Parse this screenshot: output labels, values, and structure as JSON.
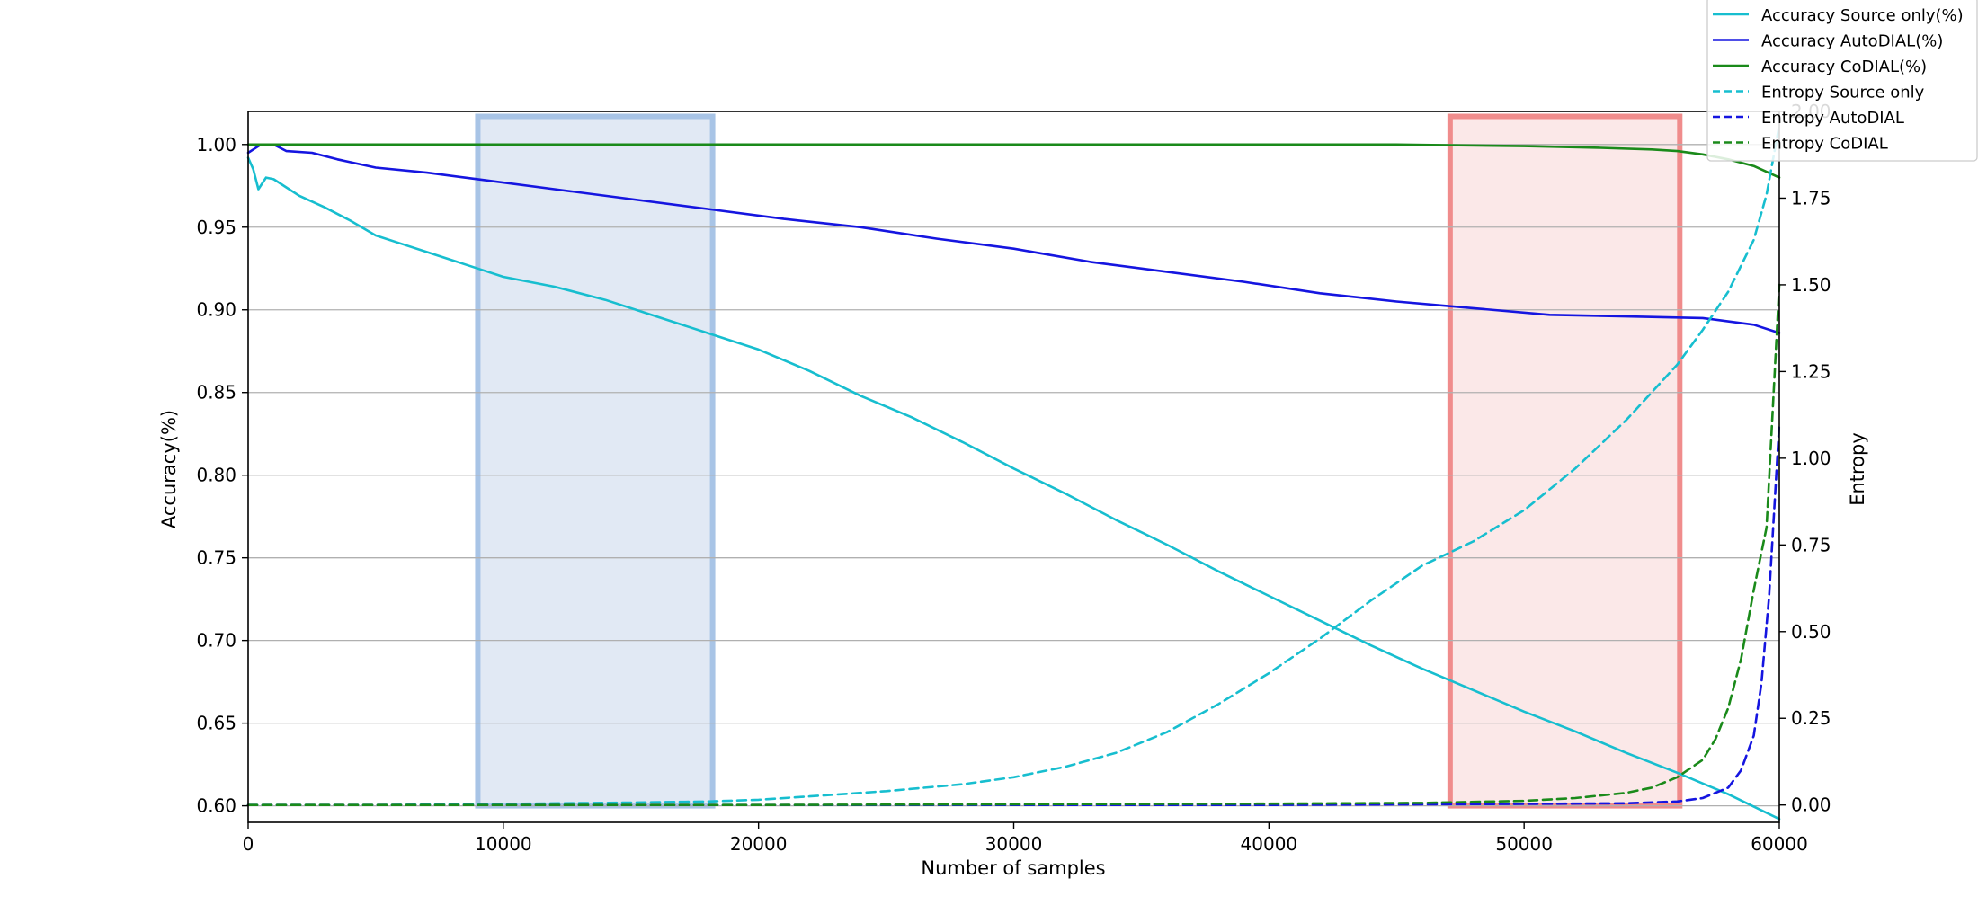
{
  "chart_data": {
    "type": "line",
    "xlabel": "Number of samples",
    "ylabel_left": "Accuracy(%)",
    "ylabel_right": "Entropy",
    "xlim": [
      0,
      60000
    ],
    "ylim_left": [
      0.59,
      1.02
    ],
    "ylim_right": [
      -0.05,
      2.0
    ],
    "x_ticks": [
      0,
      10000,
      20000,
      30000,
      40000,
      50000,
      60000
    ],
    "y_ticks_left": [
      "0.60",
      "0.65",
      "0.70",
      "0.75",
      "0.80",
      "0.85",
      "0.90",
      "0.95",
      "1.00"
    ],
    "y_ticks_right": [
      "0.00",
      "0.25",
      "0.50",
      "0.75",
      "1.00",
      "1.25",
      "1.50",
      "1.75",
      "2.00"
    ],
    "grid": "horizontal",
    "legend_position": "top-right",
    "highlight_regions": [
      {
        "x_range": [
          9000,
          18200
        ],
        "color": "#a8c4e6",
        "fill": "#e1e9f4"
      },
      {
        "x_range": [
          47100,
          56100
        ],
        "color": "#f08c8c",
        "fill": "#fbe8e8"
      }
    ],
    "series": [
      {
        "name": "Accuracy Source only(%)",
        "axis": "left",
        "color": "#17becf",
        "dash": false,
        "x": [
          0,
          200,
          400,
          700,
          1000,
          1500,
          2000,
          3000,
          4000,
          5000,
          6000,
          7000,
          8000,
          9000,
          10000,
          12000,
          14000,
          16000,
          18000,
          20000,
          22000,
          24000,
          26000,
          28000,
          30000,
          32000,
          34000,
          36000,
          38000,
          40000,
          42000,
          44000,
          46000,
          48000,
          50000,
          52000,
          54000,
          56000,
          58000,
          60000
        ],
        "y": [
          0.992,
          0.985,
          0.973,
          0.98,
          0.979,
          0.974,
          0.969,
          0.962,
          0.954,
          0.945,
          0.94,
          0.935,
          0.93,
          0.925,
          0.92,
          0.914,
          0.906,
          0.896,
          0.886,
          0.876,
          0.863,
          0.848,
          0.835,
          0.82,
          0.804,
          0.789,
          0.773,
          0.758,
          0.742,
          0.727,
          0.712,
          0.697,
          0.683,
          0.67,
          0.657,
          0.645,
          0.632,
          0.62,
          0.607,
          0.592
        ]
      },
      {
        "name": "Accuracy AutoDIAL(%)",
        "axis": "left",
        "color": "#1515e0",
        "dash": false,
        "x": [
          0,
          200,
          500,
          1000,
          1500,
          2500,
          3500,
          5000,
          7000,
          9000,
          12000,
          15000,
          18000,
          21000,
          24000,
          27000,
          30000,
          33000,
          36000,
          39000,
          42000,
          45000,
          48000,
          51000,
          54000,
          57000,
          59000,
          60000
        ],
        "y": [
          0.995,
          0.997,
          1.0,
          1.0,
          0.996,
          0.995,
          0.991,
          0.986,
          0.983,
          0.979,
          0.973,
          0.967,
          0.961,
          0.955,
          0.95,
          0.943,
          0.937,
          0.929,
          0.923,
          0.917,
          0.91,
          0.905,
          0.901,
          0.897,
          0.896,
          0.895,
          0.891,
          0.886
        ]
      },
      {
        "name": "Accuracy CoDIAL(%)",
        "axis": "left",
        "color": "#1a8a1a",
        "dash": false,
        "x": [
          0,
          10000,
          20000,
          30000,
          40000,
          45000,
          50000,
          53000,
          55000,
          56000,
          57000,
          58000,
          59000,
          60000
        ],
        "y": [
          1.0,
          1.0,
          1.0,
          1.0,
          1.0,
          1.0,
          0.999,
          0.998,
          0.997,
          0.996,
          0.994,
          0.991,
          0.987,
          0.98
        ]
      },
      {
        "name": "Entropy Source only",
        "axis": "right",
        "color": "#17becf",
        "dash": true,
        "x": [
          0,
          5000,
          10000,
          15000,
          18000,
          20000,
          22000,
          25000,
          28000,
          30000,
          32000,
          34000,
          36000,
          38000,
          40000,
          42000,
          44000,
          46000,
          48000,
          50000,
          52000,
          54000,
          56000,
          57000,
          58000,
          59000,
          59500,
          60000
        ],
        "y": [
          0.0,
          0.0,
          0.003,
          0.007,
          0.01,
          0.015,
          0.025,
          0.04,
          0.06,
          0.08,
          0.11,
          0.15,
          0.21,
          0.29,
          0.38,
          0.48,
          0.59,
          0.69,
          0.76,
          0.85,
          0.97,
          1.11,
          1.27,
          1.37,
          1.48,
          1.63,
          1.76,
          1.96
        ]
      },
      {
        "name": "Entropy AutoDIAL",
        "axis": "right",
        "color": "#1515e0",
        "dash": true,
        "x": [
          0,
          10000,
          20000,
          30000,
          40000,
          50000,
          54000,
          56000,
          57000,
          58000,
          58500,
          59000,
          59300,
          59600,
          59800,
          60000
        ],
        "y": [
          0.0,
          0.0,
          0.0,
          0.0,
          0.0,
          0.003,
          0.005,
          0.01,
          0.02,
          0.05,
          0.1,
          0.2,
          0.35,
          0.6,
          0.85,
          1.1
        ]
      },
      {
        "name": "Entropy CoDIAL",
        "axis": "right",
        "color": "#1a8a1a",
        "dash": true,
        "x": [
          0,
          10000,
          20000,
          30000,
          40000,
          46000,
          50000,
          52000,
          54000,
          55000,
          56000,
          57000,
          57500,
          58000,
          58500,
          59000,
          59500,
          60000
        ],
        "y": [
          0.0,
          0.0,
          0.0,
          0.002,
          0.004,
          0.006,
          0.012,
          0.02,
          0.035,
          0.05,
          0.08,
          0.13,
          0.19,
          0.28,
          0.42,
          0.62,
          0.8,
          1.5
        ]
      }
    ]
  }
}
